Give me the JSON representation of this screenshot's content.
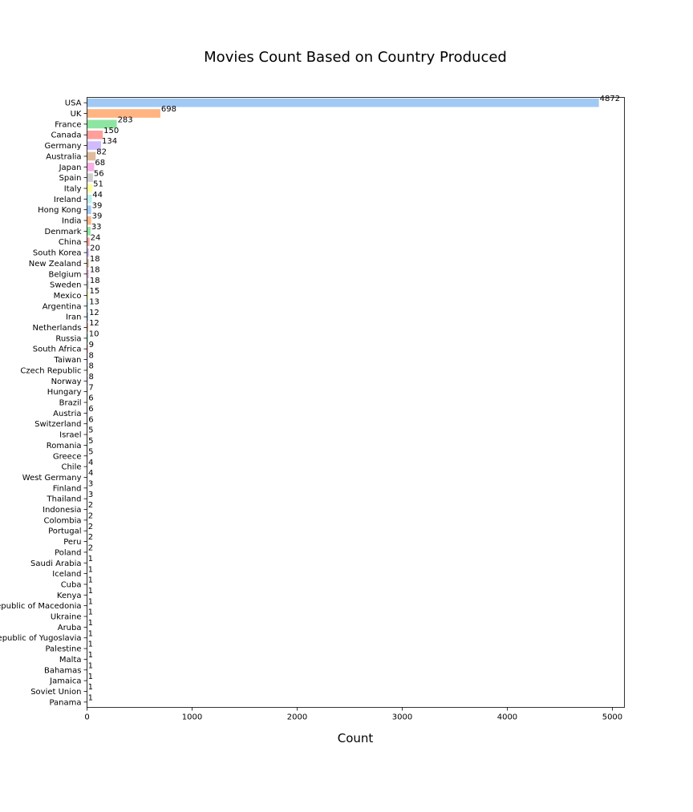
{
  "chart_data": {
    "type": "bar",
    "orientation": "horizontal",
    "title": "Movies Count Based on Country Produced",
    "xlabel": "Count",
    "ylabel": "",
    "xlim": [
      0,
      5115
    ],
    "xticks": [
      0,
      1000,
      2000,
      3000,
      4000,
      5000
    ],
    "grid": false,
    "palette": [
      "#a1c9f4",
      "#ffb482",
      "#8de5a1",
      "#ff9f9b",
      "#d0bbff",
      "#debb9b",
      "#fab0e4",
      "#cfcfcf",
      "#fffea3",
      "#b9f2f0"
    ],
    "categories": [
      "USA",
      "UK",
      "France",
      "Canada",
      "Germany",
      "Australia",
      "Japan",
      "Spain",
      "Italy",
      "Ireland",
      "Hong Kong",
      "India",
      "Denmark",
      "China",
      "South Korea",
      "New Zealand",
      "Belgium",
      "Sweden",
      "Mexico",
      "Argentina",
      "Iran",
      "Netherlands",
      "Russia",
      "South Africa",
      "Taiwan",
      "Czech Republic",
      "Norway",
      "Hungary",
      "Brazil",
      "Austria",
      "Switzerland",
      "Israel",
      "Romania",
      "Greece",
      "Chile",
      "West Germany",
      "Finland",
      "Thailand",
      "Indonesia",
      "Colombia",
      "Portugal",
      "Peru",
      "Poland",
      "Saudi Arabia",
      "Iceland",
      "Cuba",
      "Kenya",
      "Republic of Macedonia",
      "Ukraine",
      "Aruba",
      "Federal Republic of Yugoslavia",
      "Palestine",
      "Malta",
      "Bahamas",
      "Jamaica",
      "Soviet Union",
      "Panama"
    ],
    "values": [
      4872,
      698,
      283,
      150,
      134,
      82,
      68,
      56,
      51,
      44,
      39,
      39,
      33,
      24,
      20,
      18,
      18,
      18,
      15,
      13,
      12,
      12,
      10,
      9,
      8,
      8,
      8,
      7,
      6,
      6,
      6,
      5,
      5,
      5,
      4,
      4,
      3,
      3,
      2,
      2,
      2,
      2,
      2,
      1,
      1,
      1,
      1,
      1,
      1,
      1,
      1,
      1,
      1,
      1,
      1,
      1,
      1
    ]
  }
}
